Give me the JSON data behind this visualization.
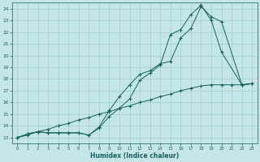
{
  "xlabel": "Humidex (Indice chaleur)",
  "xlim": [
    -0.5,
    23.5
  ],
  "ylim": [
    12.5,
    24.5
  ],
  "yticks": [
    13,
    14,
    15,
    16,
    17,
    18,
    19,
    20,
    21,
    22,
    23,
    24
  ],
  "xticks": [
    0,
    1,
    2,
    3,
    4,
    5,
    6,
    7,
    8,
    9,
    10,
    11,
    12,
    13,
    14,
    15,
    16,
    17,
    18,
    19,
    20,
    21,
    22,
    23
  ],
  "background_color": "#c5e6e6",
  "grid_color": "#9ecece",
  "line_color": "#1a5f5f",
  "line1_x": [
    0,
    1,
    2,
    3,
    4,
    5,
    6,
    7,
    8,
    9,
    10,
    11,
    12,
    13,
    14,
    15,
    16,
    17,
    18,
    19,
    20,
    21,
    22,
    23
  ],
  "line1_y": [
    13.0,
    13.2,
    13.5,
    13.7,
    14.0,
    14.2,
    14.5,
    14.7,
    15.0,
    15.2,
    15.5,
    15.7,
    16.0,
    16.2,
    16.5,
    16.7,
    17.0,
    17.2,
    17.4,
    17.5,
    17.5,
    17.5,
    17.5,
    17.6
  ],
  "line2_x": [
    0,
    1,
    2,
    3,
    4,
    5,
    6,
    7,
    8,
    9,
    10,
    11,
    12,
    13,
    14,
    15,
    16,
    17,
    18,
    19,
    20,
    22,
    23
  ],
  "line2_y": [
    13.0,
    13.3,
    13.5,
    13.4,
    13.4,
    13.4,
    13.4,
    13.2,
    13.8,
    14.8,
    15.5,
    16.3,
    17.9,
    18.5,
    19.2,
    21.8,
    22.2,
    23.5,
    24.3,
    23.0,
    20.3,
    17.5,
    17.6
  ],
  "line3_x": [
    0,
    1,
    2,
    3,
    4,
    5,
    6,
    7,
    8,
    9,
    10,
    11,
    12,
    13,
    14,
    15,
    16,
    17,
    18,
    19,
    20,
    22,
    23
  ],
  "line3_y": [
    13.0,
    13.3,
    13.5,
    13.4,
    13.4,
    13.4,
    13.4,
    13.2,
    13.9,
    15.3,
    16.5,
    17.5,
    18.4,
    18.7,
    19.3,
    19.5,
    21.5,
    22.3,
    24.2,
    23.3,
    22.9,
    17.5,
    17.6
  ]
}
